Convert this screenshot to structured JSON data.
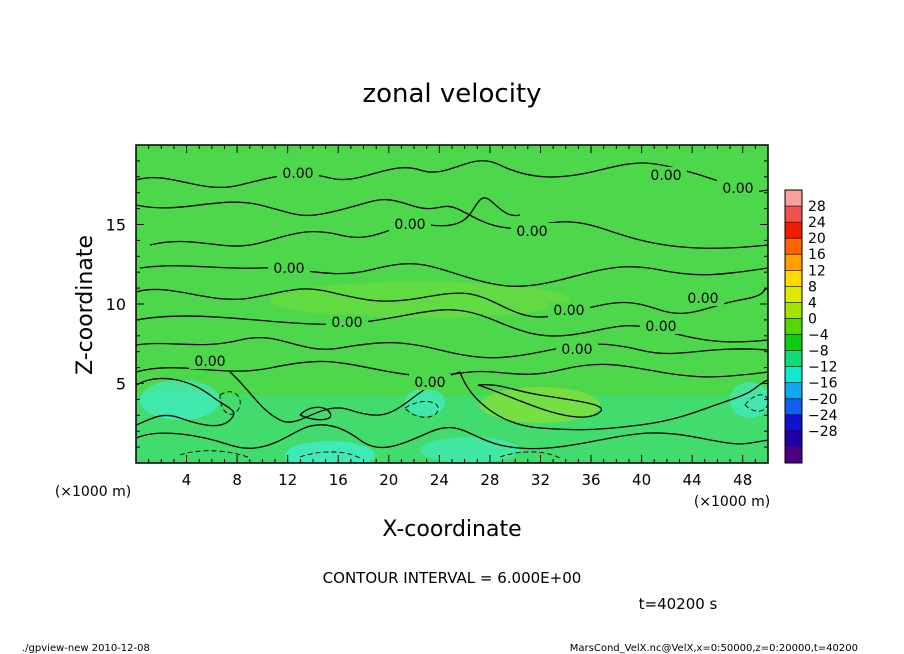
{
  "chart_data": {
    "type": "heatmap",
    "title": "zonal velocity",
    "xlabel": "X-coordinate",
    "ylabel": "Z-coordinate",
    "x_unit_left": "(×1000 m)",
    "x_unit_right": "(×1000 m)",
    "xlim": [
      0,
      50
    ],
    "ylim": [
      0,
      20
    ],
    "x_ticks": [
      4,
      8,
      12,
      16,
      20,
      24,
      28,
      32,
      36,
      40,
      44,
      48
    ],
    "y_ticks": [
      5,
      10,
      15
    ],
    "colorbar": {
      "levels": [
        28,
        24,
        20,
        16,
        12,
        8,
        4,
        0,
        -4,
        -8,
        -12,
        -16,
        -20,
        -24,
        -28
      ],
      "colors": [
        "#f9a0a0",
        "#f35050",
        "#f01c00",
        "#ff6400",
        "#ffa000",
        "#ffd800",
        "#e0e800",
        "#a0e400",
        "#50d800",
        "#10cc10",
        "#10dc78",
        "#10e8d0",
        "#10a8f0",
        "#1060f0",
        "#1010d0",
        "#2000a0",
        "#4a0080"
      ]
    },
    "contour_labels": [
      "0.00",
      "0.00",
      "0.00",
      "0.00",
      "0.00",
      "0.00",
      "0.00",
      "0.00",
      "0.00",
      "0.00",
      "0.00",
      "0.00",
      "0.00"
    ],
    "contour_interval_text": "CONTOUR INTERVAL = 6.000E+00",
    "time_text": "t=40200 s"
  },
  "footer": {
    "left": "./gpview-new  2010-12-08",
    "right": "MarsCond_VelX.nc@VelX,x=0:50000,z=0:20000,t=40200"
  },
  "colors": {
    "field_base": "#4cd84a",
    "field_light": "#7ee03c",
    "field_low": "#38e08a",
    "field_cyan": "#40f0d8",
    "contour": "#000000"
  }
}
